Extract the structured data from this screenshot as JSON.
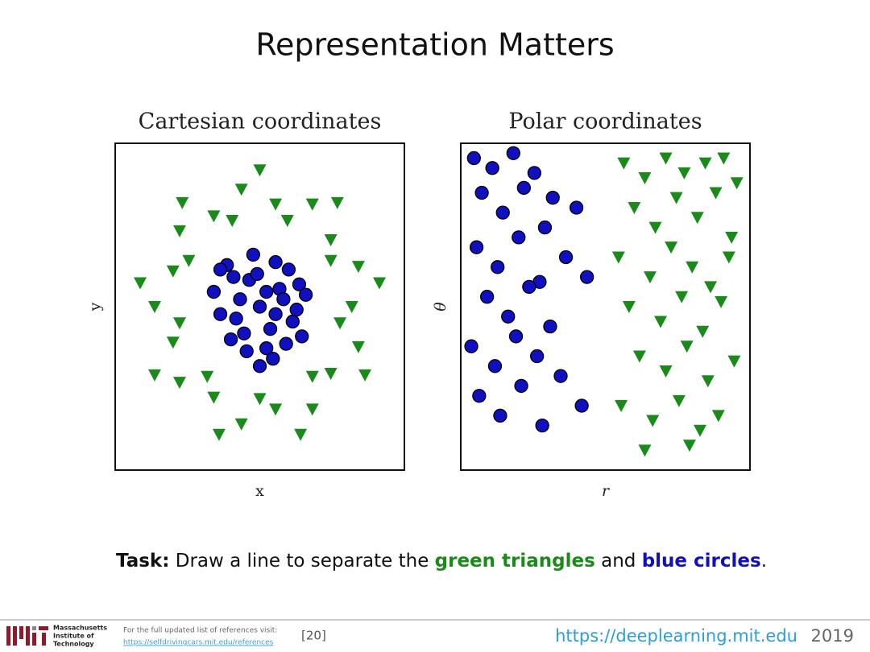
{
  "title": "Representation Matters",
  "task": {
    "lead": "Task:",
    "text1": " Draw a line to separate the ",
    "green": "green triangles",
    "text2": " and ",
    "blue": "blue circles",
    "end": "."
  },
  "footer": {
    "org1": "Massachusetts",
    "org2": "Institute of",
    "org3": "Technology",
    "ref_note": "For the full updated list of references visit:",
    "ref_link": "https://selfdrivingcars.mit.edu/references",
    "ref_num": "[20]",
    "site": "https://deeplearning.mit.edu",
    "year": "2019"
  },
  "chart_data": [
    {
      "type": "scatter",
      "title": "Cartesian coordinates",
      "xlabel": "x",
      "ylabel": "y",
      "xlim": [
        -1.1,
        1.1
      ],
      "ylim": [
        -1.1,
        1.1
      ],
      "series": [
        {
          "color": "#1a8a1a",
          "marker": "triangle",
          "x": [
            0.7,
            0.91,
            0.75,
            0.54,
            0.54,
            0.59,
            0.4,
            0.21,
            0.12,
            0,
            -0.14,
            -0.21,
            -0.35,
            -0.59,
            -0.61,
            -0.54,
            -0.66,
            -0.91,
            -0.8,
            -0.61,
            -0.66,
            -0.8,
            -0.61,
            -0.4,
            -0.35,
            -0.31,
            -0.14,
            0,
            0.12,
            0.31,
            0.4,
            0.4,
            0.54,
            0.8,
            0.75,
            0.61
          ],
          "y": [
            0,
            0.16,
            0.27,
            0.31,
            0.45,
            0.7,
            0.69,
            0.58,
            0.69,
            0.92,
            0.79,
            0.58,
            0.61,
            0.7,
            0.51,
            0.31,
            0.24,
            0.16,
            0,
            -0.11,
            -0.24,
            -0.46,
            -0.51,
            -0.47,
            -0.61,
            -0.86,
            -0.79,
            -0.62,
            -0.69,
            -0.86,
            -0.69,
            -0.47,
            -0.45,
            -0.46,
            -0.27,
            -0.11
          ]
        },
        {
          "color": "#1010c0",
          "marker": "circle",
          "x": [
            0.05,
            -0.2,
            0.25,
            -0.1,
            0.12,
            0.3,
            -0.3,
            0,
            -0.15,
            0.2,
            0.08,
            -0.25,
            0.15,
            -0.05,
            0.32,
            -0.35,
            0.1,
            -0.12,
            0.22,
            -0.22,
            0,
            0.28,
            -0.08,
            0.18,
            -0.3,
            0.05,
            -0.18,
            0.12,
            0.35,
            -0.02
          ],
          "y": [
            0.1,
            0.2,
            -0.1,
            -0.3,
            0.3,
            0.15,
            -0.05,
            0,
            0.05,
            -0.25,
            -0.15,
            0.28,
            0.12,
            0.35,
            -0.2,
            0.1,
            -0.35,
            -0.18,
            0.25,
            -0.22,
            -0.4,
            -0.02,
            0.18,
            0.05,
            0.25,
            -0.28,
            -0.08,
            -0.05,
            0.08,
            0.22
          ]
        }
      ]
    },
    {
      "type": "scatter",
      "title": "Polar coordinates",
      "xlabel": "r",
      "ylabel": "θ",
      "xlim": [
        0,
        1.1
      ],
      "ylim": [
        -3.3,
        3.3
      ],
      "series": [
        {
          "color": "#1a8a1a",
          "marker": "triangle",
          "x": [
            0.62,
            0.7,
            0.78,
            0.85,
            0.93,
            1.0,
            1.05,
            0.66,
            0.74,
            0.82,
            0.9,
            0.97,
            1.03,
            0.6,
            0.72,
            0.8,
            0.88,
            0.95,
            1.02,
            0.64,
            0.76,
            0.84,
            0.92,
            0.99,
            0.68,
            0.78,
            0.86,
            0.94,
            1.04,
            0.61,
            0.73,
            0.83,
            0.91,
            0.98,
            0.7,
            0.87
          ],
          "y": [
            2.9,
            2.6,
            3.0,
            2.7,
            2.9,
            3.0,
            2.5,
            2.0,
            1.6,
            2.2,
            1.8,
            2.3,
            1.4,
            1.0,
            0.6,
            1.2,
            0.8,
            0.4,
            1.0,
            0.0,
            -0.3,
            0.2,
            -0.5,
            0.1,
            -1.0,
            -1.3,
            -0.8,
            -1.5,
            -1.1,
            -2.0,
            -2.3,
            -1.9,
            -2.5,
            -2.2,
            -2.9,
            -2.8
          ]
        },
        {
          "color": "#1010c0",
          "marker": "circle",
          "x": [
            0.05,
            0.12,
            0.2,
            0.28,
            0.35,
            0.08,
            0.16,
            0.24,
            0.32,
            0.44,
            0.06,
            0.14,
            0.22,
            0.3,
            0.4,
            0.1,
            0.18,
            0.26,
            0.34,
            0.48,
            0.04,
            0.13,
            0.21,
            0.29,
            0.38,
            0.07,
            0.15,
            0.23,
            0.31,
            0.46
          ],
          "y": [
            3.0,
            2.8,
            3.1,
            2.7,
            2.2,
            2.3,
            1.9,
            2.4,
            1.6,
            2.0,
            1.2,
            0.8,
            1.4,
            0.5,
            1.0,
            0.2,
            -0.2,
            0.4,
            -0.4,
            0.6,
            -0.8,
            -1.2,
            -0.6,
            -1.0,
            -1.4,
            -1.8,
            -2.2,
            -1.6,
            -2.4,
            -2.0
          ]
        }
      ]
    }
  ]
}
